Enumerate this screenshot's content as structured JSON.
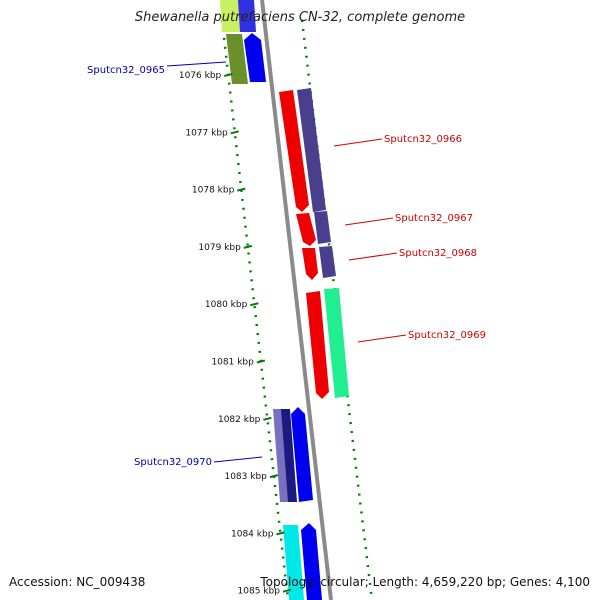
{
  "title": "Shewanella putrefaciens CN-32, complete genome",
  "footer": {
    "accession": "Accession: NC_009438",
    "summary": "Topology: circular; Length: 4,659,220 bp; Genes: 4,100"
  },
  "colors": {
    "forward_label": "#0000b0",
    "reverse_label": "#d00000",
    "backbone": "#8a8a8a",
    "dotted_track": "#008000"
  },
  "ticks": [
    {
      "label": "1076 kbp"
    },
    {
      "label": "1077 kbp"
    },
    {
      "label": "1078 kbp"
    },
    {
      "label": "1079 kbp"
    },
    {
      "label": "1080 kbp"
    },
    {
      "label": "1081 kbp"
    },
    {
      "label": "1082 kbp"
    },
    {
      "label": "1083 kbp"
    },
    {
      "label": "1084 kbp"
    },
    {
      "label": "1085 kbp"
    }
  ],
  "gene_labels": [
    {
      "id": "g0965",
      "text": "Sputcn32_0965",
      "strand": "forward"
    },
    {
      "id": "g0966",
      "text": "Sputcn32_0966",
      "strand": "reverse"
    },
    {
      "id": "g0967",
      "text": "Sputcn32_0967",
      "strand": "reverse"
    },
    {
      "id": "g0968",
      "text": "Sputcn32_0968",
      "strand": "reverse"
    },
    {
      "id": "g0969",
      "text": "Sputcn32_0969",
      "strand": "reverse"
    },
    {
      "id": "g0970",
      "text": "Sputcn32_0970",
      "strand": "forward"
    }
  ]
}
